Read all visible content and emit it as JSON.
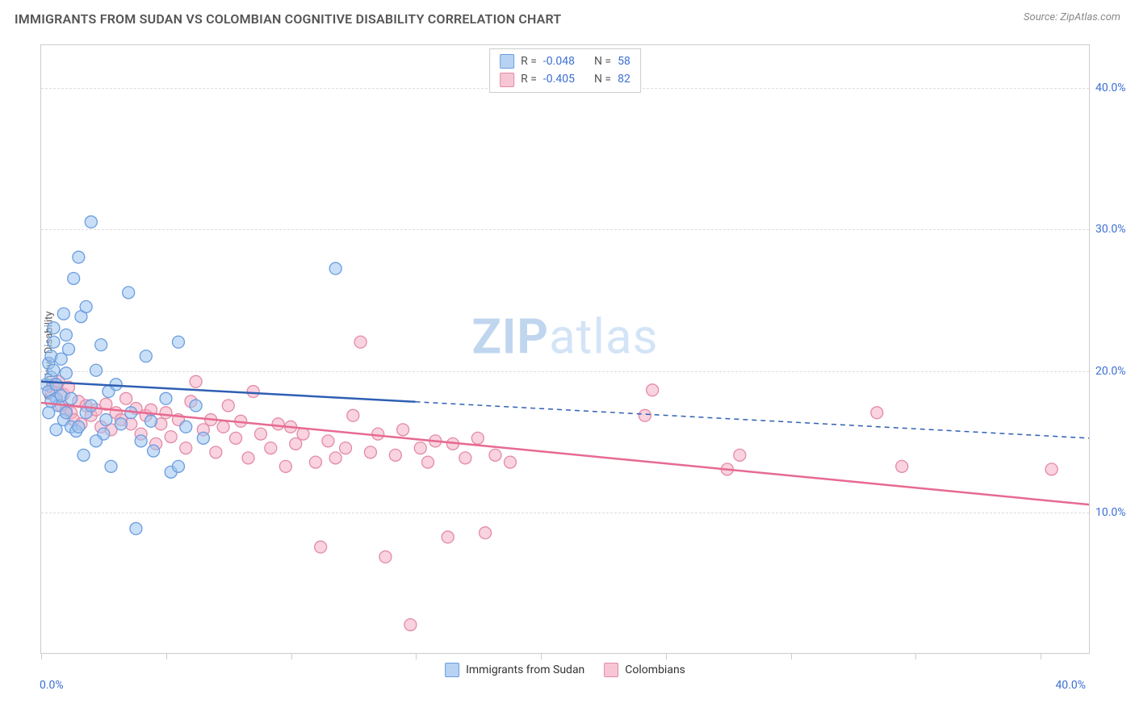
{
  "title": "IMMIGRANTS FROM SUDAN VS COLOMBIAN COGNITIVE DISABILITY CORRELATION CHART",
  "source": "Source: ZipAtlas.com",
  "y_axis_label": "Cognitive Disability",
  "watermark_bold": "ZIP",
  "watermark_light": "atlas",
  "x_range": [
    0,
    42
  ],
  "y_range": [
    0,
    43
  ],
  "x_tick_labels": {
    "min": "0.0%",
    "max": "40.0%"
  },
  "x_tick_positions": [
    0,
    5,
    10,
    15,
    20,
    25,
    30,
    35,
    40
  ],
  "y_gridlines": [
    10,
    20,
    30,
    40
  ],
  "y_tick_labels": [
    "10.0%",
    "20.0%",
    "30.0%",
    "40.0%"
  ],
  "legend_top": [
    {
      "swatch_fill": "#b7d2f3",
      "swatch_border": "#6a9de0",
      "r_label": "R =",
      "r_val": "-0.048",
      "n_label": "N =",
      "n_val": "58"
    },
    {
      "swatch_fill": "#f7c6d5",
      "swatch_border": "#e48aa6",
      "r_label": "R =",
      "r_val": "-0.405",
      "n_label": "N =",
      "n_val": "82"
    }
  ],
  "legend_bottom": [
    {
      "swatch_fill": "#b7d2f3",
      "swatch_border": "#6a9de0",
      "label": "Immigrants from Sudan"
    },
    {
      "swatch_fill": "#f7c6d5",
      "swatch_border": "#e48aa6",
      "label": "Colombians"
    }
  ],
  "series": {
    "sudan": {
      "marker_fill": "rgba(157,197,240,0.55)",
      "marker_stroke": "#6a9de0",
      "marker_r": 7.5,
      "line_color": "#2f5fb3",
      "line_width": 2.5,
      "solid_x_end": 15,
      "fit": {
        "x0": 0,
        "y0": 19.2,
        "x1": 42,
        "y1": 15.2
      },
      "points": [
        [
          0.2,
          19
        ],
        [
          0.3,
          20.5
        ],
        [
          0.3,
          18.5
        ],
        [
          0.4,
          19.5
        ],
        [
          0.4,
          21
        ],
        [
          0.5,
          20
        ],
        [
          0.5,
          22
        ],
        [
          0.5,
          23
        ],
        [
          0.6,
          18
        ],
        [
          0.6,
          19
        ],
        [
          0.7,
          17.5
        ],
        [
          0.8,
          20.8
        ],
        [
          0.8,
          18.2
        ],
        [
          0.9,
          16.5
        ],
        [
          0.9,
          24
        ],
        [
          1.0,
          19.8
        ],
        [
          1.0,
          22.5
        ],
        [
          1.1,
          21.5
        ],
        [
          1.2,
          18
        ],
        [
          1.2,
          16
        ],
        [
          1.3,
          26.5
        ],
        [
          1.4,
          15.7
        ],
        [
          1.5,
          28
        ],
        [
          1.6,
          23.8
        ],
        [
          1.7,
          14
        ],
        [
          1.8,
          17
        ],
        [
          1.8,
          24.5
        ],
        [
          2.0,
          30.5
        ],
        [
          2.0,
          17.5
        ],
        [
          2.2,
          20
        ],
        [
          2.4,
          21.8
        ],
        [
          2.5,
          15.5
        ],
        [
          2.7,
          18.5
        ],
        [
          2.8,
          13.2
        ],
        [
          3.0,
          19
        ],
        [
          3.2,
          16.2
        ],
        [
          3.5,
          25.5
        ],
        [
          3.6,
          17
        ],
        [
          4.0,
          15
        ],
        [
          4.2,
          21
        ],
        [
          4.4,
          16.4
        ],
        [
          4.5,
          14.3
        ],
        [
          5.0,
          18
        ],
        [
          5.2,
          12.8
        ],
        [
          5.5,
          22
        ],
        [
          5.5,
          13.2
        ],
        [
          5.8,
          16
        ],
        [
          3.8,
          8.8
        ],
        [
          6.2,
          17.5
        ],
        [
          6.5,
          15.2
        ],
        [
          1.5,
          16
        ],
        [
          2.2,
          15
        ],
        [
          0.6,
          15.8
        ],
        [
          0.3,
          17
        ],
        [
          0.4,
          17.8
        ],
        [
          1.0,
          17
        ],
        [
          2.6,
          16.5
        ],
        [
          11.8,
          27.2
        ]
      ]
    },
    "colombians": {
      "marker_fill": "rgba(244,174,196,0.55)",
      "marker_stroke": "#e48aa6",
      "marker_r": 7.5,
      "line_color": "#e76a91",
      "line_width": 2.5,
      "solid_x_end": 42,
      "fit": {
        "x0": 0,
        "y0": 17.7,
        "x1": 42,
        "y1": 10.5
      },
      "points": [
        [
          0.4,
          18.5
        ],
        [
          0.5,
          19
        ],
        [
          0.6,
          18
        ],
        [
          0.7,
          19.2
        ],
        [
          0.8,
          17.5
        ],
        [
          0.9,
          18.3
        ],
        [
          1.0,
          17.2
        ],
        [
          1.1,
          18.8
        ],
        [
          1.2,
          17
        ],
        [
          1.3,
          16.5
        ],
        [
          1.5,
          17.8
        ],
        [
          1.6,
          16.2
        ],
        [
          1.8,
          17.5
        ],
        [
          2.0,
          16.8
        ],
        [
          2.2,
          17.2
        ],
        [
          2.4,
          16
        ],
        [
          2.6,
          17.6
        ],
        [
          2.8,
          15.8
        ],
        [
          3.0,
          17
        ],
        [
          3.2,
          16.5
        ],
        [
          3.4,
          18
        ],
        [
          3.6,
          16.2
        ],
        [
          3.8,
          17.3
        ],
        [
          4.0,
          15.5
        ],
        [
          4.2,
          16.8
        ],
        [
          4.4,
          17.2
        ],
        [
          4.6,
          14.8
        ],
        [
          4.8,
          16.2
        ],
        [
          5.0,
          17
        ],
        [
          5.2,
          15.3
        ],
        [
          5.5,
          16.5
        ],
        [
          5.8,
          14.5
        ],
        [
          6.0,
          17.8
        ],
        [
          6.2,
          19.2
        ],
        [
          6.5,
          15.8
        ],
        [
          6.8,
          16.5
        ],
        [
          7.0,
          14.2
        ],
        [
          7.3,
          16
        ],
        [
          7.5,
          17.5
        ],
        [
          7.8,
          15.2
        ],
        [
          8.0,
          16.4
        ],
        [
          8.3,
          13.8
        ],
        [
          8.5,
          18.5
        ],
        [
          8.8,
          15.5
        ],
        [
          9.2,
          14.5
        ],
        [
          9.5,
          16.2
        ],
        [
          9.8,
          13.2
        ],
        [
          10.2,
          14.8
        ],
        [
          10.5,
          15.5
        ],
        [
          11.0,
          13.5
        ],
        [
          11.2,
          7.5
        ],
        [
          11.5,
          15
        ],
        [
          11.8,
          13.8
        ],
        [
          12.2,
          14.5
        ],
        [
          12.5,
          16.8
        ],
        [
          12.8,
          22
        ],
        [
          13.2,
          14.2
        ],
        [
          13.5,
          15.5
        ],
        [
          13.8,
          6.8
        ],
        [
          14.2,
          14
        ],
        [
          14.5,
          15.8
        ],
        [
          14.8,
          2.0
        ],
        [
          15.2,
          14.5
        ],
        [
          15.5,
          13.5
        ],
        [
          15.8,
          15
        ],
        [
          16.3,
          8.2
        ],
        [
          16.5,
          14.8
        ],
        [
          17.0,
          13.8
        ],
        [
          17.5,
          15.2
        ],
        [
          17.8,
          8.5
        ],
        [
          18.2,
          14
        ],
        [
          18.8,
          13.5
        ],
        [
          24.2,
          16.8
        ],
        [
          24.5,
          18.6
        ],
        [
          27.5,
          13
        ],
        [
          28.0,
          14
        ],
        [
          33.5,
          17
        ],
        [
          34.5,
          13.2
        ],
        [
          40.5,
          13
        ],
        [
          10.0,
          16
        ]
      ]
    }
  },
  "colors": {
    "axis": "#cccccc",
    "grid": "#dddddd",
    "tick_text": "#3b6fd4",
    "title_text": "#555555",
    "source_text": "#888888"
  }
}
